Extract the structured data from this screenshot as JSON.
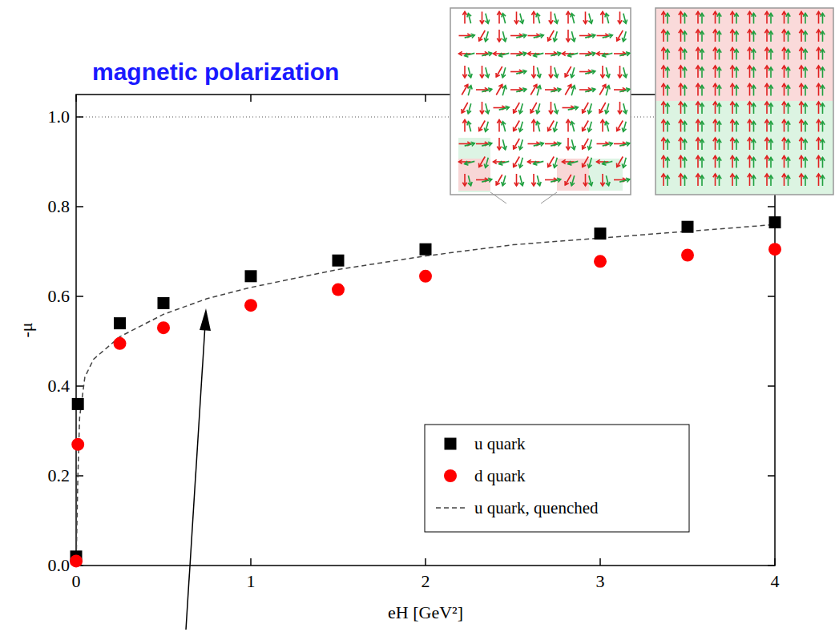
{
  "chart_data": {
    "type": "scatter",
    "title": "magnetic polarization",
    "x_label": "eH [GeV²]",
    "y_label": "-μ",
    "xlim": [
      0,
      4
    ],
    "ylim": [
      0,
      1.05
    ],
    "xticks": [
      0,
      1,
      2,
      3,
      4
    ],
    "yticks": [
      {
        "value": 0,
        "label": "0.0"
      },
      {
        "value": 0.2,
        "label": "0.2"
      },
      {
        "value": 0.4,
        "label": "0.4"
      },
      {
        "value": 0.6,
        "label": "0.6"
      },
      {
        "value": 0.8,
        "label": "0.8"
      },
      {
        "value": 1.0,
        "label": "1.0"
      }
    ],
    "hline": 1.0,
    "grid": false,
    "legend": "lower right",
    "series": [
      {
        "name": "u quark",
        "color": "#000000",
        "marker": "square",
        "type": "scatter",
        "x": [
          0,
          0.01,
          0.25,
          0.5,
          1,
          1.5,
          2,
          3,
          3.5,
          4
        ],
        "values": [
          0.02,
          0.36,
          0.54,
          0.585,
          0.645,
          0.68,
          0.705,
          0.74,
          0.755,
          0.765
        ]
      },
      {
        "name": "d quark",
        "color": "#ff0000",
        "marker": "circle",
        "type": "scatter",
        "x": [
          0,
          0.01,
          0.25,
          0.5,
          1,
          1.5,
          2,
          3,
          3.5,
          4
        ],
        "values": [
          0.01,
          0.27,
          0.495,
          0.53,
          0.58,
          0.615,
          0.645,
          0.678,
          0.692,
          0.705
        ]
      },
      {
        "name": "u quark, quenched",
        "color": "#444444",
        "line_style": "dashed",
        "type": "line",
        "x": [
          0,
          0.01,
          0.02,
          0.05,
          0.1,
          0.25,
          0.5,
          0.75,
          1,
          1.5,
          2,
          2.5,
          3,
          3.5,
          4
        ],
        "values": [
          0,
          0.2,
          0.33,
          0.42,
          0.46,
          0.51,
          0.56,
          0.595,
          0.62,
          0.66,
          0.69,
          0.715,
          0.73,
          0.745,
          0.76
        ]
      }
    ]
  }
}
